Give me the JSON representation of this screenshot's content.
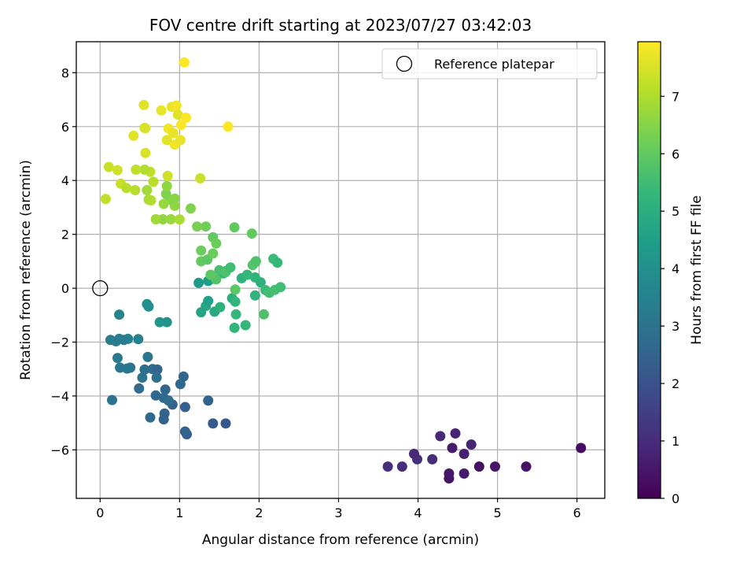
{
  "chart_data": {
    "type": "scatter",
    "title": "FOV centre drift starting at 2023/07/27 03:42:03",
    "xlabel": "Angular distance from reference (arcmin)",
    "ylabel": "Rotation from reference (arcmin)",
    "xlim": [
      -0.3,
      6.35
    ],
    "ylim": [
      -7.8,
      9.15
    ],
    "xticks": [
      0,
      1,
      2,
      3,
      4,
      5,
      6
    ],
    "yticks": [
      -6,
      -4,
      -2,
      0,
      2,
      4,
      6,
      8
    ],
    "xtick_labels": [
      "0",
      "1",
      "2",
      "3",
      "4",
      "5",
      "6"
    ],
    "ytick_labels": [
      "−6",
      "−4",
      "−2",
      "0",
      "2",
      "4",
      "6",
      "8"
    ],
    "grid": true,
    "legend": {
      "location": "top-right",
      "entries": [
        "Reference platepar"
      ]
    },
    "reference_point": {
      "x": 0,
      "y": 0
    },
    "colorbar": {
      "label": "Hours from first FF file",
      "colormap": "viridis",
      "range": [
        0,
        7.95
      ],
      "ticks": [
        0,
        1,
        2,
        3,
        4,
        5,
        6,
        7
      ],
      "tick_labels": [
        "0",
        "1",
        "2",
        "3",
        "4",
        "5",
        "6",
        "7"
      ]
    },
    "points": [
      [
        6.05,
        -5.93,
        0.3
      ],
      [
        5.36,
        -6.62,
        0.4
      ],
      [
        4.97,
        -6.62,
        0.5
      ],
      [
        4.77,
        -6.62,
        0.3
      ],
      [
        4.58,
        -6.88,
        0.6
      ],
      [
        4.39,
        -7.06,
        0.4
      ],
      [
        4.39,
        -6.88,
        0.5
      ],
      [
        4.67,
        -5.8,
        0.8
      ],
      [
        4.58,
        -6.15,
        0.7
      ],
      [
        4.43,
        -5.93,
        0.6
      ],
      [
        4.47,
        -5.39,
        0.8
      ],
      [
        4.28,
        -5.49,
        0.9
      ],
      [
        4.18,
        -6.35,
        1.0
      ],
      [
        3.99,
        -6.35,
        1.1
      ],
      [
        3.95,
        -6.15,
        0.9
      ],
      [
        3.8,
        -6.62,
        1.0
      ],
      [
        3.62,
        -6.62,
        1.1
      ],
      [
        1.58,
        -5.02,
        2.2
      ],
      [
        1.42,
        -5.02,
        2.3
      ],
      [
        1.09,
        -5.42,
        2.4
      ],
      [
        1.07,
        -5.32,
        2.5
      ],
      [
        1.07,
        -4.41,
        2.4
      ],
      [
        1.36,
        -4.17,
        2.5
      ],
      [
        1.05,
        -3.28,
        2.6
      ],
      [
        1.01,
        -3.56,
        2.7
      ],
      [
        0.91,
        -4.32,
        2.5
      ],
      [
        0.81,
        -4.65,
        2.6
      ],
      [
        0.8,
        -4.87,
        2.5
      ],
      [
        0.63,
        -4.8,
        2.7
      ],
      [
        0.82,
        -3.76,
        2.6
      ],
      [
        0.8,
        -4.07,
        2.7
      ],
      [
        0.86,
        -4.17,
        2.8
      ],
      [
        0.7,
        -3.98,
        2.7
      ],
      [
        0.66,
        -3.0,
        2.8
      ],
      [
        0.72,
        -3.02,
        2.6
      ],
      [
        0.71,
        -3.32,
        2.9
      ],
      [
        0.56,
        -3.02,
        2.9
      ],
      [
        0.53,
        -3.32,
        3.0
      ],
      [
        0.49,
        -3.72,
        2.8
      ],
      [
        0.6,
        -2.55,
        3.1
      ],
      [
        0.38,
        -2.95,
        3.0
      ],
      [
        0.34,
        -2.98,
        3.2
      ],
      [
        0.25,
        -2.95,
        3.1
      ],
      [
        0.22,
        -2.59,
        3.2
      ],
      [
        0.15,
        -4.15,
        3.0
      ],
      [
        0.13,
        -1.92,
        3.3
      ],
      [
        0.2,
        -1.97,
        3.4
      ],
      [
        0.24,
        -1.88,
        3.3
      ],
      [
        0.35,
        -1.88,
        3.5
      ],
      [
        0.3,
        -1.92,
        3.4
      ],
      [
        0.48,
        -1.89,
        3.5
      ],
      [
        0.24,
        -0.98,
        3.6
      ],
      [
        0.59,
        -0.59,
        4.0
      ],
      [
        0.61,
        -0.68,
        3.9
      ],
      [
        0.75,
        -1.26,
        4.2
      ],
      [
        0.84,
        -1.26,
        4.1
      ],
      [
        1.24,
        0.2,
        4.3
      ],
      [
        1.27,
        -0.89,
        4.6
      ],
      [
        1.33,
        -0.66,
        4.7
      ],
      [
        1.36,
        -0.47,
        4.5
      ],
      [
        1.36,
        0.27,
        4.4
      ],
      [
        1.42,
        0.35,
        4.6
      ],
      [
        1.44,
        -0.87,
        4.8
      ],
      [
        1.51,
        -0.7,
        5.0
      ],
      [
        1.55,
        0.55,
        5.1
      ],
      [
        1.58,
        0.63,
        4.9
      ],
      [
        1.66,
        -0.37,
        5.0
      ],
      [
        1.7,
        -0.5,
        5.2
      ],
      [
        1.71,
        -0.97,
        5.3
      ],
      [
        1.69,
        -1.47,
        5.2
      ],
      [
        1.83,
        -1.37,
        5.3
      ],
      [
        1.78,
        0.37,
        5.1
      ],
      [
        1.85,
        0.5,
        5.3
      ],
      [
        1.95,
        0.4,
        5.2
      ],
      [
        1.95,
        -0.27,
        5.1
      ],
      [
        2.02,
        0.22,
        5.0
      ],
      [
        2.08,
        -0.07,
        5.4
      ],
      [
        2.13,
        -0.17,
        5.5
      ],
      [
        2.18,
        1.09,
        5.4
      ],
      [
        2.23,
        0.95,
        5.3
      ],
      [
        2.2,
        -0.06,
        5.6
      ],
      [
        2.27,
        0.04,
        5.5
      ],
      [
        2.06,
        -0.97,
        5.7
      ],
      [
        1.95,
        0.96,
        5.6
      ],
      [
        1.92,
        0.86,
        5.8
      ],
      [
        1.96,
        1.0,
        5.7
      ],
      [
        1.5,
        0.67,
        5.6
      ],
      [
        1.46,
        0.33,
        5.8
      ],
      [
        1.58,
        0.6,
        5.7
      ],
      [
        1.64,
        0.77,
        5.5
      ],
      [
        1.7,
        -0.05,
        5.9
      ],
      [
        1.39,
        0.5,
        5.9
      ],
      [
        1.27,
        1.0,
        6.0
      ],
      [
        1.27,
        1.4,
        6.1
      ],
      [
        1.35,
        1.06,
        5.9
      ],
      [
        1.33,
        2.29,
        6.2
      ],
      [
        1.42,
        1.89,
        6.0
      ],
      [
        1.42,
        1.29,
        6.1
      ],
      [
        1.46,
        1.66,
        6.1
      ],
      [
        1.69,
        2.26,
        6.0
      ],
      [
        1.91,
        2.03,
        6.0
      ],
      [
        1.22,
        2.29,
        6.3
      ],
      [
        1.14,
        2.96,
        6.4
      ],
      [
        0.94,
        3.33,
        6.5
      ],
      [
        0.94,
        3.06,
        6.6
      ],
      [
        0.87,
        3.29,
        6.5
      ],
      [
        0.83,
        3.5,
        6.4
      ],
      [
        0.84,
        3.79,
        6.6
      ],
      [
        0.8,
        3.13,
        6.7
      ],
      [
        0.79,
        2.56,
        6.6
      ],
      [
        0.7,
        2.56,
        6.8
      ],
      [
        0.89,
        2.56,
        6.7
      ],
      [
        1.0,
        2.55,
        6.9
      ],
      [
        0.61,
        3.29,
        6.9
      ],
      [
        0.64,
        3.26,
        7.0
      ],
      [
        0.59,
        3.64,
        6.8
      ],
      [
        0.44,
        3.64,
        7.1
      ],
      [
        0.67,
        3.95,
        7.1
      ],
      [
        0.63,
        4.32,
        7.2
      ],
      [
        0.56,
        4.4,
        7.0
      ],
      [
        0.45,
        4.4,
        7.2
      ],
      [
        0.26,
        3.88,
        7.3
      ],
      [
        0.33,
        3.72,
        7.1
      ],
      [
        0.07,
        3.31,
        7.2
      ],
      [
        0.11,
        4.5,
        7.3
      ],
      [
        0.22,
        4.38,
        7.4
      ],
      [
        0.85,
        4.17,
        7.4
      ],
      [
        1.26,
        4.08,
        7.3
      ],
      [
        0.57,
        5.02,
        7.5
      ],
      [
        0.42,
        5.66,
        7.6
      ],
      [
        0.56,
        5.95,
        7.4
      ],
      [
        0.57,
        5.94,
        7.5
      ],
      [
        0.55,
        6.8,
        7.6
      ],
      [
        0.77,
        6.6,
        7.7
      ],
      [
        0.84,
        5.5,
        7.6
      ],
      [
        0.86,
        5.93,
        7.8
      ],
      [
        0.9,
        6.73,
        7.7
      ],
      [
        0.96,
        6.78,
        7.8
      ],
      [
        0.98,
        6.44,
        7.6
      ],
      [
        0.94,
        5.33,
        7.8
      ],
      [
        1.01,
        5.5,
        7.7
      ],
      [
        1.02,
        6.06,
        7.9
      ],
      [
        1.08,
        6.33,
        7.9
      ],
      [
        1.61,
        6.0,
        7.95
      ],
      [
        1.06,
        8.38,
        7.95
      ],
      [
        0.92,
        5.76,
        7.7
      ]
    ]
  }
}
